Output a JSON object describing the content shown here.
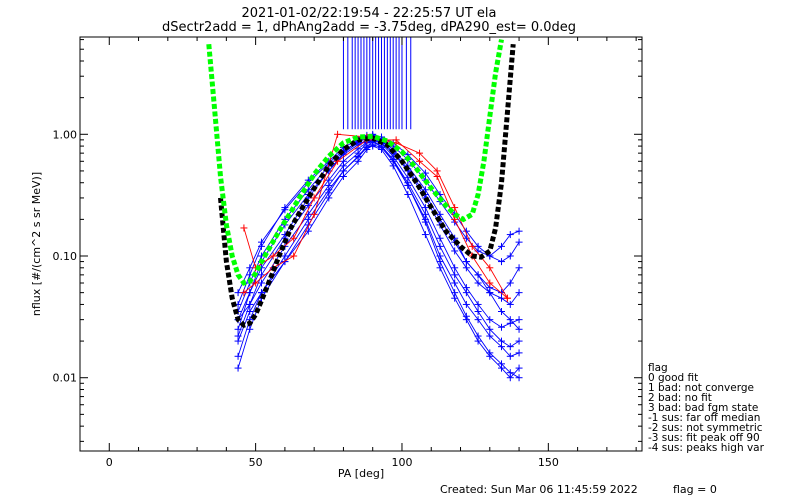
{
  "chart_data": {
    "type": "scatter",
    "title_line1": "2021-01-02/22:19:54 - 22:25:57 UT ela",
    "title_line2": "dSectr2add = 1, dPhAng2add = -3.75deg, dPA290_est=    0.0deg",
    "xlabel": "PA [deg]",
    "ylabel": "nflux [#/(cm^2 s sr MeV)]",
    "x_ticks": [
      {
        "value": 0,
        "label": "0"
      },
      {
        "value": 50,
        "label": "50"
      },
      {
        "value": 100,
        "label": "100"
      },
      {
        "value": 150,
        "label": "150"
      }
    ],
    "y_ticks": [
      {
        "value": 0.01,
        "label": "0.01"
      },
      {
        "value": 0.1,
        "label": "0.10"
      },
      {
        "value": 1.0,
        "label": "1.00"
      }
    ],
    "xlim": [
      -10,
      182
    ],
    "ylim": [
      0.0025,
      6.3
    ],
    "y_scale": "log",
    "colors": {
      "data": "#0000ff",
      "flagged": "#ff0000",
      "fit_black": "#000000",
      "fit_green": "#00ff00"
    },
    "fit_black": {
      "x": [
        38,
        40,
        42,
        44,
        46,
        48,
        50,
        52,
        55,
        58,
        62,
        66,
        70,
        75,
        80,
        85,
        90,
        95,
        100,
        105,
        110,
        115,
        120,
        124,
        127,
        130,
        132,
        134,
        136,
        138
      ],
      "y": [
        0.3,
        0.09,
        0.045,
        0.03,
        0.027,
        0.028,
        0.033,
        0.043,
        0.065,
        0.1,
        0.17,
        0.25,
        0.36,
        0.55,
        0.75,
        0.9,
        0.93,
        0.82,
        0.6,
        0.4,
        0.25,
        0.16,
        0.12,
        0.1,
        0.098,
        0.11,
        0.17,
        0.4,
        1.5,
        5.5
      ]
    },
    "fit_green": {
      "x": [
        34,
        36,
        38,
        40,
        42,
        44,
        46,
        48,
        50,
        52,
        55,
        58,
        62,
        66,
        70,
        75,
        80,
        85,
        90,
        95,
        100,
        105,
        110,
        115,
        118,
        121,
        124,
        126,
        128,
        130,
        132,
        134
      ],
      "y": [
        5.5,
        1.6,
        0.45,
        0.18,
        0.1,
        0.07,
        0.06,
        0.062,
        0.072,
        0.09,
        0.12,
        0.16,
        0.23,
        0.33,
        0.47,
        0.66,
        0.85,
        0.95,
        0.96,
        0.88,
        0.72,
        0.52,
        0.36,
        0.26,
        0.22,
        0.2,
        0.22,
        0.32,
        0.6,
        1.4,
        3.2,
        6.0
      ]
    },
    "data_x": [
      44,
      48,
      52,
      60,
      68,
      75,
      80,
      85,
      88,
      90,
      93,
      97,
      102,
      108,
      113,
      118,
      122,
      126,
      130,
      134,
      137,
      140
    ],
    "data_profiles": [
      [
        0.025,
        0.05,
        0.08,
        0.15,
        0.3,
        0.5,
        0.7,
        0.85,
        0.95,
        0.98,
        0.9,
        0.75,
        0.55,
        0.35,
        0.22,
        0.14,
        0.09,
        0.07,
        0.05,
        0.035,
        0.03,
        0.025
      ],
      [
        0.03,
        0.04,
        0.06,
        0.12,
        0.22,
        0.38,
        0.55,
        0.7,
        0.85,
        0.88,
        0.8,
        0.62,
        0.4,
        0.22,
        0.12,
        0.07,
        0.05,
        0.035,
        0.025,
        0.02,
        0.018,
        0.02
      ],
      [
        0.035,
        0.06,
        0.1,
        0.2,
        0.35,
        0.55,
        0.72,
        0.88,
        0.95,
        0.92,
        0.85,
        0.7,
        0.5,
        0.3,
        0.18,
        0.11,
        0.08,
        0.06,
        0.05,
        0.045,
        0.04,
        0.05
      ],
      [
        0.02,
        0.035,
        0.05,
        0.09,
        0.16,
        0.3,
        0.45,
        0.6,
        0.75,
        0.82,
        0.78,
        0.6,
        0.38,
        0.2,
        0.1,
        0.06,
        0.04,
        0.03,
        0.022,
        0.018,
        0.015,
        0.016
      ],
      [
        0.015,
        0.03,
        0.05,
        0.1,
        0.2,
        0.35,
        0.5,
        0.65,
        0.78,
        0.8,
        0.75,
        0.55,
        0.32,
        0.15,
        0.08,
        0.045,
        0.03,
        0.02,
        0.015,
        0.012,
        0.01,
        0.012
      ],
      [
        0.04,
        0.07,
        0.12,
        0.25,
        0.42,
        0.6,
        0.78,
        0.9,
        0.98,
        1.0,
        0.95,
        0.85,
        0.68,
        0.48,
        0.32,
        0.22,
        0.16,
        0.12,
        0.1,
        0.09,
        0.1,
        0.13
      ],
      [
        0.03,
        0.05,
        0.09,
        0.18,
        0.32,
        0.5,
        0.68,
        0.82,
        0.9,
        0.94,
        0.88,
        0.72,
        0.52,
        0.32,
        0.2,
        0.13,
        0.09,
        0.07,
        0.055,
        0.05,
        0.06,
        0.08
      ],
      [
        0.022,
        0.04,
        0.07,
        0.14,
        0.26,
        0.42,
        0.6,
        0.76,
        0.86,
        0.9,
        0.84,
        0.66,
        0.44,
        0.25,
        0.14,
        0.08,
        0.055,
        0.04,
        0.03,
        0.026,
        0.028,
        0.03
      ],
      [
        0.012,
        0.025,
        0.045,
        0.09,
        0.18,
        0.33,
        0.5,
        0.66,
        0.8,
        0.86,
        0.8,
        0.62,
        0.38,
        0.19,
        0.09,
        0.05,
        0.032,
        0.022,
        0.016,
        0.013,
        0.011,
        0.01
      ],
      [
        0.05,
        0.08,
        0.13,
        0.24,
        0.4,
        0.58,
        0.74,
        0.86,
        0.93,
        0.96,
        0.92,
        0.8,
        0.62,
        0.42,
        0.28,
        0.19,
        0.14,
        0.11,
        0.1,
        0.12,
        0.15,
        0.16
      ]
    ],
    "flagged_x": [
      46,
      50,
      56,
      63,
      70,
      78,
      88,
      98,
      106,
      112,
      118,
      124,
      130,
      136
    ],
    "flagged_profiles": [
      [
        0.17,
        0.08,
        0.1,
        0.14,
        0.3,
        0.6,
        0.9,
        0.9,
        0.6,
        0.45,
        0.2,
        0.1,
        0.06,
        0.045
      ],
      [
        0.05,
        0.06,
        0.08,
        0.1,
        0.22,
        1.0,
        0.95,
        0.85,
        0.7,
        0.5,
        0.25,
        0.12,
        0.08,
        0.045
      ]
    ],
    "vertical_spike_x": [
      80,
      81.5,
      83,
      84,
      85,
      86,
      87,
      88,
      89,
      90,
      91,
      92,
      93,
      94,
      95,
      96,
      97,
      98,
      99,
      100,
      101.5,
      103
    ],
    "vertical_spike_ymin": 1.1
  },
  "legend": {
    "title": "flag",
    "items": [
      " 0 good fit",
      " 1 bad: not converge",
      " 2 bad: no fit",
      " 3 bad: bad fgm state",
      "-1 sus: far off median",
      "-2 sus: not symmetric",
      "-3 sus: fit peak off 90",
      "-4 sus: peaks high var"
    ]
  },
  "footer": {
    "created": "Created: Sun Mar 06 11:45:59 2022",
    "flag": "flag = 0"
  }
}
